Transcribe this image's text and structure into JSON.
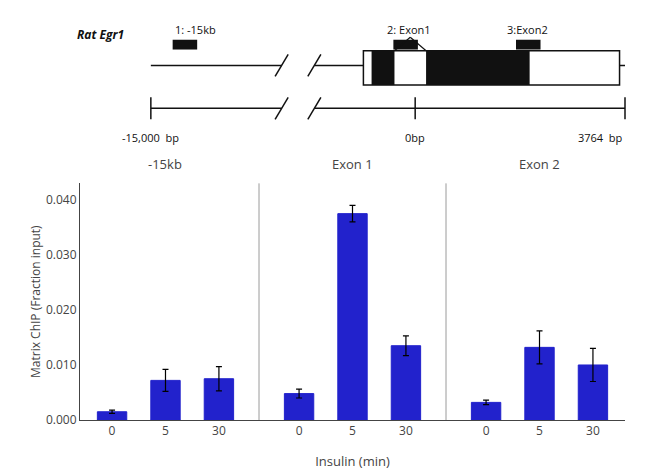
{
  "chart_data": {
    "type": "bar",
    "categories": [
      "0",
      "5",
      "30",
      "0",
      "5",
      "30",
      "0",
      "5",
      "30"
    ],
    "groups": [
      "-15kb",
      "Exon 1",
      "Exon 2"
    ],
    "values": [
      0.0015,
      0.0072,
      0.0075,
      0.0048,
      0.0375,
      0.0135,
      0.0032,
      0.0132,
      0.01
    ],
    "errors": [
      0.0003,
      0.002,
      0.0022,
      0.0008,
      0.0015,
      0.0018,
      0.0004,
      0.003,
      0.003
    ],
    "color": "#2222CC",
    "xlabel": "Insulin (min)",
    "ylabel": "Matrix ChIP (Fraction input)",
    "ylim": [
      0,
      0.043
    ],
    "yticks": [
      {
        "value": 0.0,
        "label": "0.000"
      },
      {
        "value": 0.01,
        "label": "0.010"
      },
      {
        "value": 0.02,
        "label": "0.020"
      },
      {
        "value": 0.03,
        "label": "0.030"
      },
      {
        "value": 0.04,
        "label": "0.040"
      }
    ],
    "grid": false,
    "annotations": [
      "Rat Egr1",
      "1: -15kb",
      "2: Exon1",
      "3:Exon2",
      "-15,000  bp",
      "0bp",
      "3764  bp"
    ]
  }
}
